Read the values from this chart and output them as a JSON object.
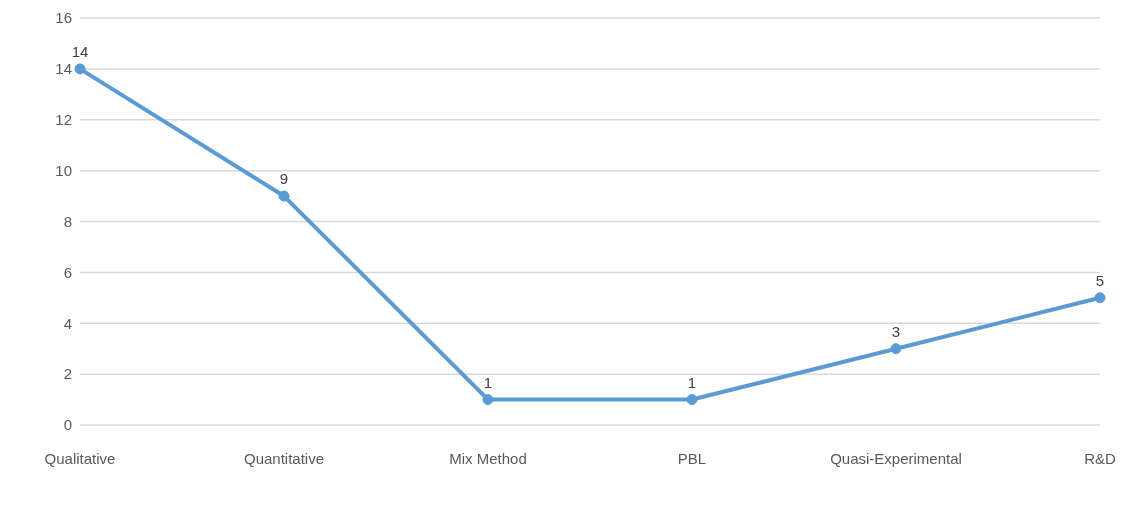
{
  "chart_data": {
    "type": "line",
    "categories": [
      "Qualitative",
      "Quantitative",
      "Mix Method",
      "PBL",
      "Quasi-Experimental",
      "R&D"
    ],
    "series": [
      {
        "color": "#5b9bd5",
        "values": [
          14,
          9,
          1,
          1,
          3,
          5
        ]
      }
    ],
    "ylim": [
      0,
      16
    ],
    "yticks": [
      0,
      2,
      4,
      6,
      8,
      10,
      12,
      14,
      16
    ],
    "grid": "y",
    "marker": "circle",
    "data_labels": true,
    "legend": false
  }
}
